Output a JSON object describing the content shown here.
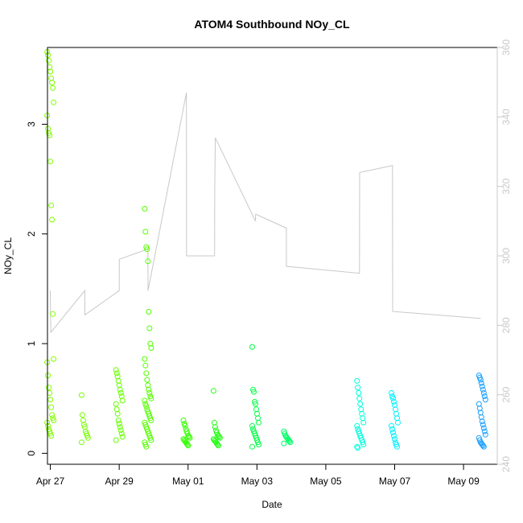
{
  "chart_data": {
    "type": "scatter",
    "title": "ATOM4 Southbound NOy_CL",
    "xlabel": "Date",
    "ylabel": "NOy_CL",
    "ylabel_right": "",
    "x_ticks": [
      "Apr 27",
      "Apr 29",
      "May 01",
      "May 03",
      "May 05",
      "May 07",
      "May 09"
    ],
    "y_ticks": [
      "0",
      "1",
      "2",
      "3"
    ],
    "y2_ticks": [
      "240",
      "260",
      "280",
      "300",
      "320",
      "340",
      "360"
    ],
    "xlim": [
      "2018-04-26T23:00",
      "2018-05-10T00:30"
    ],
    "ylim": [
      -0.1,
      3.7
    ],
    "y2lim": [
      240,
      360
    ],
    "colors": {
      "points_scale": [
        "#7fff00",
        "#55ff00",
        "#00ff44",
        "#00ffcc",
        "#00e6ff",
        "#00aaff"
      ],
      "line": "#c8c8c8",
      "axes": "#000000",
      "right_axis": "#c8c8c8"
    },
    "series": [
      {
        "kind": "points",
        "clusters": [
          {
            "x": "2018-04-27T01:00",
            "color": "#7fff00",
            "values": [
              3.66,
              3.63,
              3.58,
              3.52,
              3.48,
              3.42,
              3.38,
              3.33,
              3.2,
              3.08,
              2.96,
              2.92,
              2.9,
              2.66,
              2.26,
              2.13,
              1.27,
              0.86,
              0.83,
              0.71,
              0.6,
              0.55,
              0.49,
              0.42,
              0.35,
              0.32,
              0.3,
              0.28,
              0.25,
              0.22,
              0.2,
              0.18,
              0.16
            ]
          },
          {
            "x": "2018-04-28T01:00",
            "color": "#77ff00",
            "values": [
              0.53,
              0.35,
              0.3,
              0.26,
              0.24,
              0.2,
              0.18,
              0.16,
              0.14,
              0.1
            ]
          },
          {
            "x": "2018-04-29T01:00",
            "color": "#66ff00",
            "values": [
              0.76,
              0.73,
              0.7,
              0.66,
              0.62,
              0.58,
              0.55,
              0.52,
              0.48,
              0.45,
              0.4,
              0.36,
              0.3,
              0.27,
              0.24,
              0.21,
              0.18,
              0.15,
              0.12
            ]
          },
          {
            "x": "2018-04-29T21:00",
            "color": "#55ff00",
            "values": [
              2.23,
              2.02,
              1.88,
              1.86,
              1.75,
              1.29,
              1.14,
              1.0,
              0.96,
              0.86,
              0.8,
              0.73,
              0.67,
              0.62,
              0.58,
              0.55,
              0.52,
              0.5,
              0.48,
              0.45,
              0.43,
              0.4,
              0.38,
              0.36,
              0.34,
              0.32,
              0.3,
              0.28,
              0.26,
              0.24,
              0.22,
              0.2,
              0.18,
              0.16,
              0.14,
              0.12,
              0.1,
              0.08,
              0.06
            ]
          },
          {
            "x": "2018-05-01T00:00",
            "color": "#33ff00",
            "values": [
              0.3,
              0.27,
              0.25,
              0.22,
              0.2,
              0.18,
              0.16,
              0.15,
              0.14,
              0.13,
              0.12,
              0.11,
              0.1,
              0.09,
              0.08,
              0.07
            ]
          },
          {
            "x": "2018-05-01T21:00",
            "color": "#22ff11",
            "values": [
              0.57,
              0.28,
              0.24,
              0.21,
              0.19,
              0.17,
              0.16,
              0.15,
              0.14,
              0.13,
              0.12,
              0.11,
              0.1,
              0.09,
              0.08,
              0.07
            ]
          },
          {
            "x": "2018-05-03T00:00",
            "color": "#00ff44",
            "values": [
              0.97,
              0.58,
              0.56,
              0.47,
              0.45,
              0.4,
              0.36,
              0.32,
              0.28,
              0.25,
              0.22,
              0.2,
              0.18,
              0.16,
              0.14,
              0.12,
              0.1,
              0.08,
              0.06
            ]
          },
          {
            "x": "2018-05-03T22:00",
            "color": "#00ff66",
            "values": [
              0.2,
              0.18,
              0.16,
              0.15,
              0.14,
              0.13,
              0.12,
              0.11,
              0.1,
              0.09
            ]
          },
          {
            "x": "2018-05-06T01:00",
            "color": "#00ffdd",
            "values": [
              0.66,
              0.6,
              0.55,
              0.5,
              0.45,
              0.4,
              0.36,
              0.32,
              0.28,
              0.25,
              0.22,
              0.2,
              0.18,
              0.16,
              0.14,
              0.12,
              0.1,
              0.08,
              0.06,
              0.05
            ]
          },
          {
            "x": "2018-05-07T01:00",
            "color": "#00f0ff",
            "values": [
              0.55,
              0.52,
              0.5,
              0.47,
              0.44,
              0.4,
              0.36,
              0.32,
              0.28,
              0.25,
              0.22,
              0.19,
              0.16,
              0.13,
              0.1,
              0.08,
              0.06
            ]
          },
          {
            "x": "2018-05-09T14:00",
            "color": "#1a9fff",
            "values": [
              0.71,
              0.69,
              0.67,
              0.64,
              0.61,
              0.58,
              0.55,
              0.52,
              0.49,
              0.45,
              0.41,
              0.37,
              0.33,
              0.29,
              0.26,
              0.23,
              0.2,
              0.17,
              0.14,
              0.12,
              0.1,
              0.09,
              0.08,
              0.07,
              0.06
            ]
          }
        ]
      },
      {
        "kind": "line",
        "axis": "right",
        "color": "#c8c8c8",
        "x": [
          "2018-04-27T00:55",
          "2018-04-27T01:20",
          "2018-04-28T01:00",
          "2018-04-28T01:05",
          "2018-04-29T01:00",
          "2018-04-29T01:05",
          "2018-04-29T21:00",
          "2018-04-29T21:05",
          "2018-04-30T23:50",
          "2018-04-30T23:55",
          "2018-05-01T19:30",
          "2018-05-01T19:35",
          "2018-05-01T20:00",
          "2018-05-03T00:00",
          "2018-05-03T00:05",
          "2018-05-03T21:30",
          "2018-05-03T21:35",
          "2018-05-06T00:30",
          "2018-05-06T00:35",
          "2018-05-06T23:30",
          "2018-05-06T23:35",
          "2018-05-09T13:00",
          "2018-05-09T13:05"
        ],
        "values": [
          290,
          278,
          290,
          283,
          290,
          299,
          302,
          290,
          347,
          300,
          300,
          320,
          334,
          310,
          312,
          308,
          297,
          295,
          324,
          326,
          284,
          282,
          282
        ]
      }
    ]
  }
}
